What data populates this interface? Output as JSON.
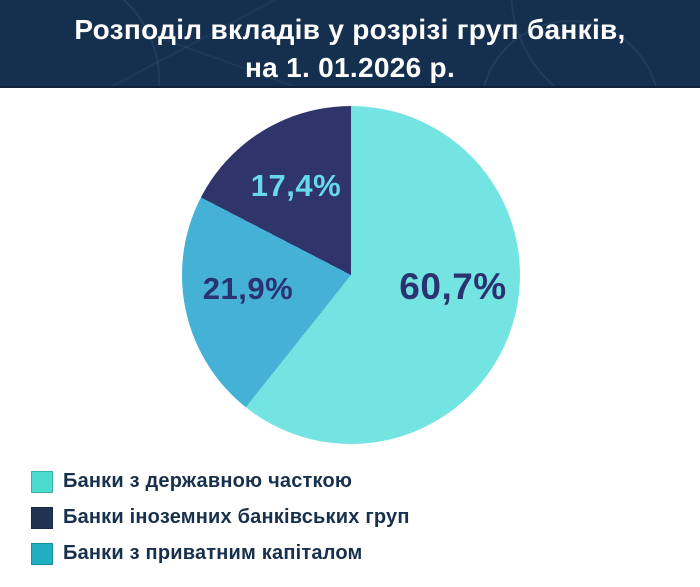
{
  "header": {
    "title_line1": "Розподіл вкладів у розрізі груп банків,",
    "title_line2": "на 1. 01.2026 р."
  },
  "chart_data": {
    "type": "pie",
    "title": "Розподіл вкладів у розрізі груп банків, на 1. 01.2026 р.",
    "unit": "%",
    "start_angle_deg": 0,
    "direction": "clockwise",
    "legend_position": "bottom-left",
    "slices": [
      {
        "label": "Банки з державною часткою",
        "value": 60.7,
        "display": "60,7%",
        "color": "#74E4E2",
        "label_color": "#2B3270"
      },
      {
        "label": "Банки з приватним капіталом",
        "value": 21.9,
        "display": "21,9%",
        "color": "#45B1D7",
        "label_color": "#2B3270"
      },
      {
        "label": "Банки іноземних банківських груп",
        "value": 17.4,
        "display": "17,4%",
        "color": "#2F356B",
        "label_color": "#68D9EC"
      }
    ]
  },
  "legend": {
    "items": [
      {
        "label": "Банки з державною часткою",
        "swatch_color": "#4BDBCD"
      },
      {
        "label": "Банки іноземних банківських груп",
        "swatch_color": "#1E3452"
      },
      {
        "label": "Банки з приватним капіталом",
        "swatch_color": "#20AFC2"
      }
    ]
  },
  "colors": {
    "header_bg": "#15304E",
    "body_bg": "#FFFFFF",
    "title_text": "#FFFFFF",
    "legend_text": "#17304D"
  }
}
